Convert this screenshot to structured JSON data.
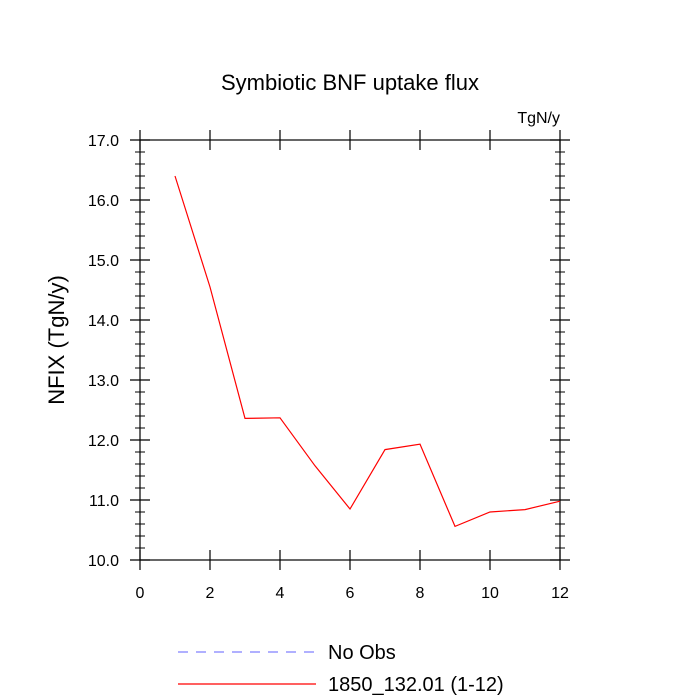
{
  "chart_data": {
    "type": "line",
    "title": "Symbiotic BNF uptake flux",
    "units_label": "TgN/y",
    "xlabel": "",
    "ylabel": "NFIX  (TgN/y)",
    "xlim": [
      0,
      12
    ],
    "ylim": [
      10.0,
      17.0
    ],
    "x_ticks": [
      0,
      2,
      4,
      6,
      8,
      10,
      12
    ],
    "x_tick_labels": [
      "0",
      "2",
      "4",
      "6",
      "8",
      "10",
      "12"
    ],
    "y_ticks": [
      10.0,
      11.0,
      12.0,
      13.0,
      14.0,
      15.0,
      16.0,
      17.0
    ],
    "y_tick_labels": [
      "10.0",
      "11.0",
      "12.0",
      "13.0",
      "14.0",
      "15.0",
      "16.0",
      "17.0"
    ],
    "grid": false,
    "legend_position": "bottom",
    "series": [
      {
        "name": "No Obs",
        "color": "#8080ff",
        "style": "dashed",
        "x": [],
        "y": []
      },
      {
        "name": "1850_132.01 (1-12)",
        "color": "#ff0000",
        "style": "solid",
        "x": [
          1,
          2,
          3,
          4,
          5,
          6,
          7,
          8,
          9,
          10,
          11,
          12
        ],
        "y": [
          16.4,
          14.55,
          12.36,
          12.37,
          11.57,
          10.85,
          11.84,
          11.93,
          10.56,
          10.8,
          10.84,
          10.98
        ]
      }
    ]
  }
}
